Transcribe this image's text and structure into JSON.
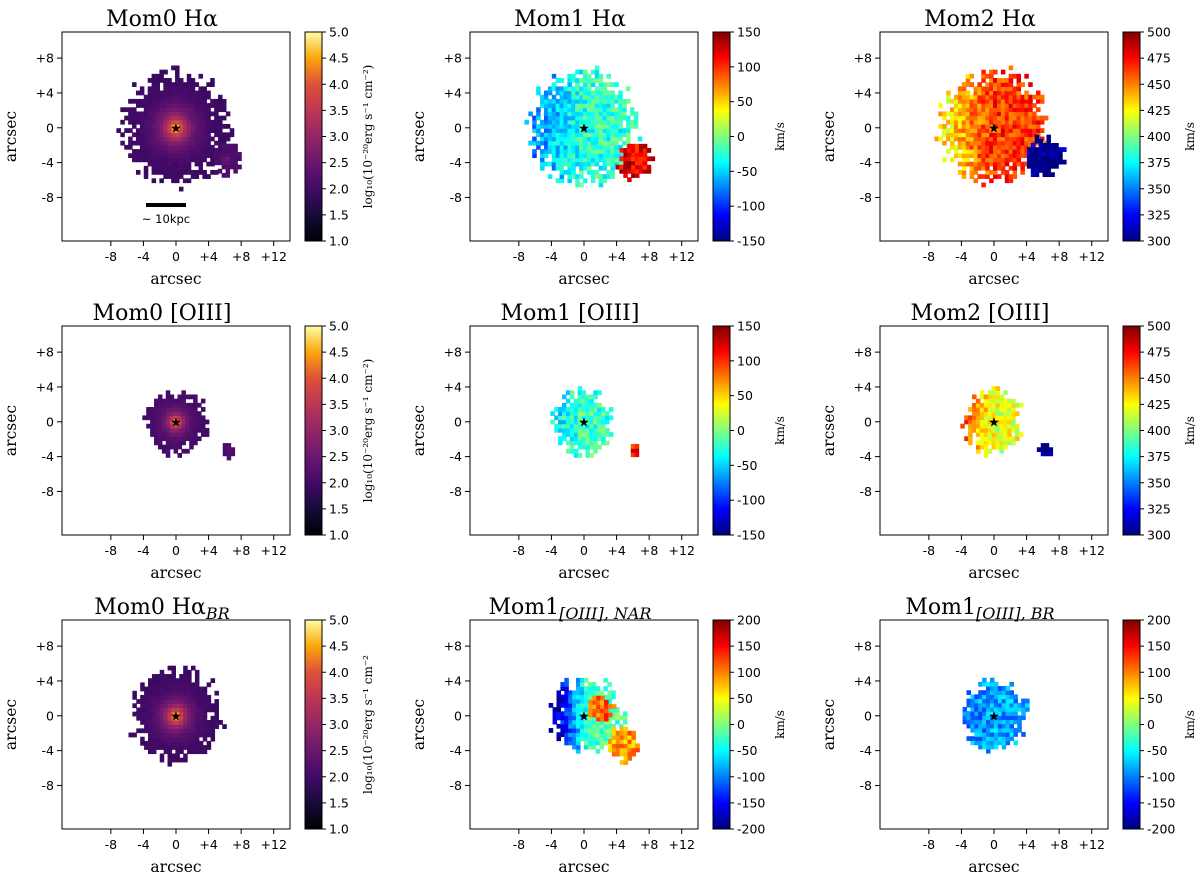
{
  "figure": {
    "scale_bar_label": "~ 10kpc",
    "xlabel": "arcsec",
    "ylabel": "arcsec"
  },
  "chart_data": [
    {
      "type": "heatmap",
      "title": "Mom0 Hα",
      "title_sub": "",
      "xlabel": "arcsec",
      "ylabel": "arcsec",
      "xticks": [
        "-8",
        "-4",
        "0",
        "+4",
        "+8",
        "+12"
      ],
      "yticks": [
        "+8",
        "+4",
        "0",
        "-4",
        "-8"
      ],
      "xlim": [
        -14,
        14
      ],
      "ylim": [
        -13,
        11
      ],
      "colormap": "inferno",
      "vmin": 1.0,
      "vmax": 5.0,
      "cbar_ticks": [
        "1.0",
        "1.5",
        "2.0",
        "2.5",
        "3.0",
        "3.5",
        "4.0",
        "4.5",
        "5.0"
      ],
      "cbar_label": "log₁₀(10⁻²⁰erg s⁻¹ cm⁻²)",
      "scale_bar": true,
      "components": [
        {
          "kind": "nucleus",
          "x": 0,
          "y": 0,
          "radius": 6.5,
          "peak": 5.0,
          "edge": 1.9
        },
        {
          "kind": "blob",
          "x": 6.3,
          "y": -3.6,
          "radius": 1.8,
          "peak": 2.7,
          "edge": 2.1
        }
      ]
    },
    {
      "type": "heatmap",
      "title": "Mom1 Hα",
      "title_sub": "",
      "xlabel": "arcsec",
      "ylabel": "arcsec",
      "xticks": [
        "-8",
        "-4",
        "0",
        "+4",
        "+8",
        "+12"
      ],
      "yticks": [
        "+8",
        "+4",
        "0",
        "-4",
        "-8"
      ],
      "xlim": [
        -14,
        14
      ],
      "ylim": [
        -13,
        11
      ],
      "colormap": "jet",
      "vmin": -150,
      "vmax": 150,
      "cbar_ticks": [
        "-150",
        "-100",
        "-50",
        "0",
        "50",
        "100",
        "150"
      ],
      "cbar_label": "km/s",
      "scale_bar": false,
      "components": [
        {
          "kind": "field",
          "x": 0,
          "y": 0,
          "radius": 6.5,
          "value": -25,
          "value_west": -70
        },
        {
          "kind": "blob",
          "x": 6.3,
          "y": -3.8,
          "radius": 2.1,
          "value": 120
        }
      ]
    },
    {
      "type": "heatmap",
      "title": "Mom2 Hα",
      "title_sub": "",
      "xlabel": "arcsec",
      "ylabel": "arcsec",
      "xticks": [
        "-8",
        "-4",
        "0",
        "+4",
        "+8",
        "+12"
      ],
      "yticks": [
        "+8",
        "+4",
        "0",
        "-4",
        "-8"
      ],
      "xlim": [
        -14,
        14
      ],
      "ylim": [
        -13,
        11
      ],
      "colormap": "jet",
      "vmin": 300,
      "vmax": 500,
      "cbar_ticks": [
        "300",
        "325",
        "350",
        "375",
        "400",
        "425",
        "450",
        "475",
        "500"
      ],
      "cbar_label": "km/s",
      "scale_bar": false,
      "components": [
        {
          "kind": "field",
          "x": 0,
          "y": 0,
          "radius": 6.5,
          "value": 465,
          "value_west": 430
        },
        {
          "kind": "blob",
          "x": 6.3,
          "y": -3.4,
          "radius": 2.4,
          "value": 300
        }
      ]
    },
    {
      "type": "heatmap",
      "title": "Mom0 [OIII]",
      "title_sub": "",
      "xlabel": "arcsec",
      "ylabel": "arcsec",
      "xticks": [
        "-8",
        "-4",
        "0",
        "+4",
        "+8",
        "+12"
      ],
      "yticks": [
        "+8",
        "+4",
        "0",
        "-4",
        "-8"
      ],
      "xlim": [
        -14,
        14
      ],
      "ylim": [
        -13,
        11
      ],
      "colormap": "inferno",
      "vmin": 1.0,
      "vmax": 5.0,
      "cbar_ticks": [
        "1.0",
        "1.5",
        "2.0",
        "2.5",
        "3.0",
        "3.5",
        "4.0",
        "4.5",
        "5.0"
      ],
      "cbar_label": "log₁₀(10⁻²⁰erg s⁻¹ cm⁻²)",
      "scale_bar": false,
      "components": [
        {
          "kind": "nucleus",
          "x": 0,
          "y": 0,
          "radius": 3.8,
          "peak": 5.0,
          "edge": 2.0
        },
        {
          "kind": "blob",
          "x": 6.4,
          "y": -3.3,
          "radius": 0.8,
          "peak": 2.3,
          "edge": 2.1
        }
      ]
    },
    {
      "type": "heatmap",
      "title": "Mom1 [OIII]",
      "title_sub": "",
      "xlabel": "arcsec",
      "ylabel": "arcsec",
      "xticks": [
        "-8",
        "-4",
        "0",
        "+4",
        "+8",
        "+12"
      ],
      "yticks": [
        "+8",
        "+4",
        "0",
        "-4",
        "-8"
      ],
      "xlim": [
        -14,
        14
      ],
      "ylim": [
        -13,
        11
      ],
      "colormap": "jet",
      "vmin": -150,
      "vmax": 150,
      "cbar_ticks": [
        "-150",
        "-100",
        "-50",
        "0",
        "50",
        "100",
        "150"
      ],
      "cbar_label": "km/s",
      "scale_bar": false,
      "components": [
        {
          "kind": "field",
          "x": 0,
          "y": 0,
          "radius": 3.8,
          "value": -20,
          "value_west": -40
        },
        {
          "kind": "blob",
          "x": 6.4,
          "y": -3.4,
          "radius": 0.8,
          "value": 110
        }
      ]
    },
    {
      "type": "heatmap",
      "title": "Mom2 [OIII]",
      "title_sub": "",
      "xlabel": "arcsec",
      "ylabel": "arcsec",
      "xticks": [
        "-8",
        "-4",
        "0",
        "+4",
        "+8",
        "+12"
      ],
      "yticks": [
        "+8",
        "+4",
        "0",
        "-4",
        "-8"
      ],
      "xlim": [
        -14,
        14
      ],
      "ylim": [
        -13,
        11
      ],
      "colormap": "jet",
      "vmin": 300,
      "vmax": 500,
      "cbar_ticks": [
        "300",
        "325",
        "350",
        "375",
        "400",
        "425",
        "450",
        "475",
        "500"
      ],
      "cbar_label": "km/s",
      "scale_bar": false,
      "components": [
        {
          "kind": "field",
          "x": 0,
          "y": 0,
          "radius": 3.8,
          "value": 420,
          "value_west": 455
        },
        {
          "kind": "blob",
          "x": 6.4,
          "y": -3.3,
          "radius": 0.8,
          "value": 300
        }
      ]
    },
    {
      "type": "heatmap",
      "title": "Mom0 Hα",
      "title_sub": "BR",
      "xlabel": "arcsec",
      "ylabel": "arcsec",
      "xticks": [
        "-8",
        "-4",
        "0",
        "+4",
        "+8",
        "+12"
      ],
      "yticks": [
        "+8",
        "+4",
        "0",
        "-4",
        "-8"
      ],
      "xlim": [
        -14,
        14
      ],
      "ylim": [
        -13,
        11
      ],
      "colormap": "inferno",
      "vmin": 1.0,
      "vmax": 5.0,
      "cbar_ticks": [
        "1.0",
        "1.5",
        "2.0",
        "2.5",
        "3.0",
        "3.5",
        "4.0",
        "4.5",
        "5.0"
      ],
      "cbar_label": "log₁₀(10⁻²⁰erg s⁻¹ cm⁻²",
      "scale_bar": false,
      "components": [
        {
          "kind": "nucleus",
          "x": 0,
          "y": 0,
          "radius": 5.5,
          "peak": 5.0,
          "edge": 1.9
        }
      ]
    },
    {
      "type": "heatmap",
      "title": "Mom1",
      "title_sub": "[OIII], NAR",
      "xlabel": "arcsec",
      "ylabel": "arcsec",
      "xticks": [
        "-8",
        "-4",
        "0",
        "+4",
        "+8",
        "+12"
      ],
      "yticks": [
        "+8",
        "+4",
        "0",
        "-4",
        "-8"
      ],
      "xlim": [
        -14,
        14
      ],
      "ylim": [
        -13,
        11
      ],
      "colormap": "jet",
      "vmin": -200,
      "vmax": 200,
      "cbar_ticks": [
        "-200",
        "-150",
        "-100",
        "-50",
        "0",
        "50",
        "100",
        "150",
        "200"
      ],
      "cbar_label": "km/s",
      "scale_bar": false,
      "components": [
        {
          "kind": "field",
          "x": 0.5,
          "y": 0,
          "radius": 4.5,
          "value": -20,
          "value_west": -180
        },
        {
          "kind": "blob",
          "x": 2.0,
          "y": 0.8,
          "radius": 1.6,
          "value": 110
        },
        {
          "kind": "blob",
          "x": 4.8,
          "y": -3.3,
          "radius": 2.0,
          "value": 90
        }
      ]
    },
    {
      "type": "heatmap",
      "title": "Mom1",
      "title_sub": "[OIII], BR",
      "xlabel": "arcsec",
      "ylabel": "arcsec",
      "xticks": [
        "-8",
        "-4",
        "0",
        "+4",
        "+8",
        "+12"
      ],
      "yticks": [
        "+8",
        "+4",
        "0",
        "-4",
        "-8"
      ],
      "xlim": [
        -14,
        14
      ],
      "ylim": [
        -13,
        11
      ],
      "colormap": "jet",
      "vmin": -200,
      "vmax": 200,
      "cbar_ticks": [
        "-200",
        "-150",
        "-100",
        "-50",
        "0",
        "50",
        "100",
        "150",
        "200"
      ],
      "cbar_label": "km/s",
      "scale_bar": false,
      "components": [
        {
          "kind": "field",
          "x": 0,
          "y": 0,
          "radius": 4.0,
          "value": -85,
          "value_west": -95
        }
      ]
    }
  ]
}
